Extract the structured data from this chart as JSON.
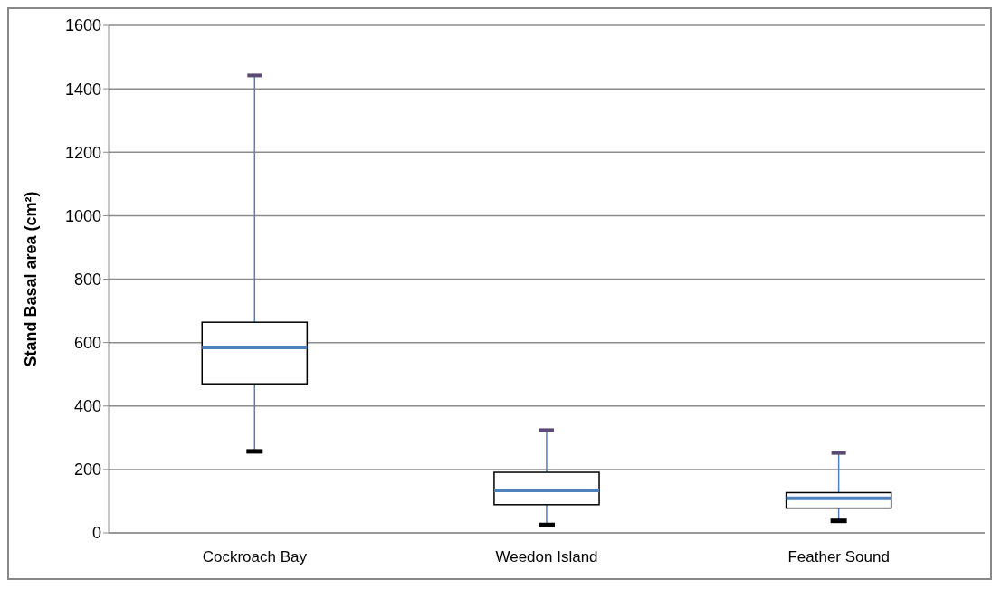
{
  "chart_data": {
    "type": "box",
    "ylabel": "Stand Basal area (cm²)",
    "categories": [
      "Cockroach Bay",
      "Weedon Island",
      "Feather Sound"
    ],
    "boxes": [
      {
        "low": 257,
        "q1": 470,
        "median": 585,
        "q3": 664,
        "high": 1442
      },
      {
        "low": 25,
        "q1": 89,
        "median": 134,
        "q3": 191,
        "high": 324
      },
      {
        "low": 38,
        "q1": 78,
        "median": 109,
        "q3": 127,
        "high": 252
      }
    ],
    "ylim": [
      0,
      1600
    ],
    "yticks": [
      0,
      200,
      400,
      600,
      800,
      1000,
      1200,
      1400,
      1600
    ],
    "grid": "y"
  }
}
